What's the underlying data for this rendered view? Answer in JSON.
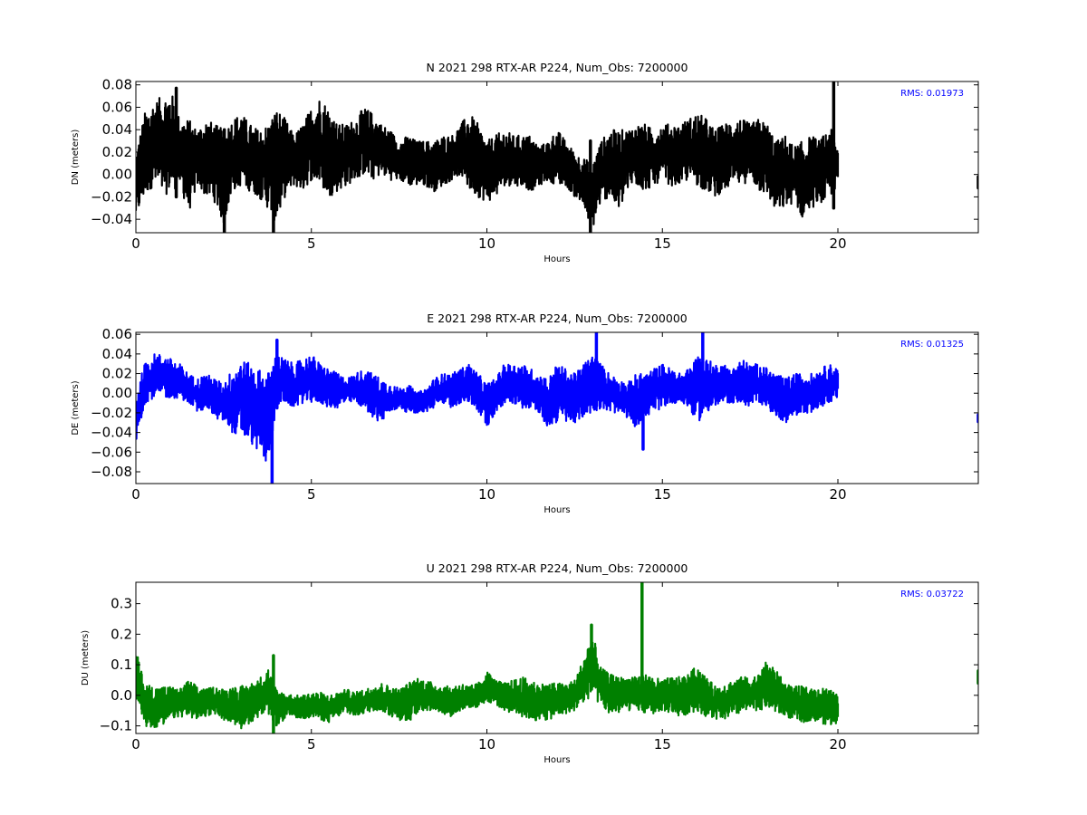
{
  "chart_data": [
    {
      "type": "line",
      "title": "N 2021 298 RTX-AR  P224, Num_Obs: 7200000",
      "xlabel": "Hours",
      "ylabel": "DN (meters)",
      "xlim": [
        0,
        24
      ],
      "ylim": [
        -0.052,
        0.083
      ],
      "xticks": [
        0,
        5,
        10,
        15,
        20
      ],
      "yticks": [
        -0.04,
        -0.02,
        0.0,
        0.02,
        0.04,
        0.06,
        0.08
      ],
      "ytick_labels": [
        "−0.04",
        "−0.02",
        "0.00",
        "0.02",
        "0.04",
        "0.06",
        "0.08"
      ],
      "grid": false,
      "color": "#000000",
      "rms_label": "RMS:  0.01973",
      "series": [
        {
          "x": [
            0,
            0.25,
            0.5,
            0.75,
            1,
            1.25,
            1.5,
            1.75,
            2,
            2.25,
            2.5,
            2.75,
            3,
            3.25,
            3.5,
            3.75,
            4,
            4.25,
            4.5,
            4.75,
            5,
            5.25,
            5.5,
            5.75,
            6,
            6.25,
            6.5,
            6.75,
            7,
            7.25,
            7.5,
            7.75,
            8,
            8.25,
            8.5,
            8.75,
            9,
            9.25,
            9.5,
            9.75,
            10,
            10.25,
            10.5,
            10.75,
            11,
            11.25,
            11.5,
            11.75,
            12,
            12.25,
            12.5,
            12.75,
            13,
            13.25,
            13.5,
            13.75,
            14,
            14.25,
            14.5,
            14.75,
            15,
            15.25,
            15.5,
            15.75,
            16,
            16.25,
            16.5,
            16.75,
            17,
            17.25,
            17.5,
            17.75,
            18,
            18.25,
            18.5,
            18.75,
            19,
            19.25,
            19.5,
            19.75,
            20
          ],
          "lower": [
            -0.04,
            -0.02,
            -0.01,
            -0.02,
            -0.015,
            -0.01,
            -0.035,
            -0.01,
            -0.02,
            -0.025,
            -0.045,
            -0.015,
            -0.01,
            -0.015,
            -0.02,
            -0.03,
            -0.045,
            -0.02,
            -0.01,
            -0.015,
            -0.005,
            -0.01,
            -0.02,
            -0.015,
            -0.01,
            -0.005,
            0.0,
            -0.005,
            0.0,
            -0.005,
            -0.005,
            -0.01,
            -0.01,
            -0.01,
            -0.015,
            -0.01,
            -0.005,
            0.0,
            -0.015,
            -0.02,
            -0.025,
            -0.02,
            -0.01,
            -0.01,
            -0.01,
            -0.015,
            -0.01,
            -0.005,
            -0.01,
            -0.01,
            -0.02,
            -0.03,
            -0.05,
            -0.025,
            -0.02,
            -0.035,
            -0.015,
            -0.01,
            -0.015,
            -0.01,
            -0.005,
            -0.01,
            -0.01,
            -0.005,
            -0.01,
            -0.015,
            -0.02,
            -0.015,
            -0.01,
            -0.01,
            -0.005,
            -0.015,
            -0.02,
            -0.035,
            -0.03,
            -0.025,
            -0.04,
            -0.03,
            -0.025,
            -0.025,
            -0.01
          ],
          "upper": [
            0.02,
            0.055,
            0.065,
            0.07,
            0.075,
            0.05,
            0.05,
            0.04,
            0.05,
            0.045,
            0.04,
            0.05,
            0.055,
            0.045,
            0.04,
            0.045,
            0.06,
            0.05,
            0.035,
            0.045,
            0.06,
            0.07,
            0.06,
            0.045,
            0.045,
            0.05,
            0.06,
            0.055,
            0.045,
            0.04,
            0.03,
            0.035,
            0.03,
            0.03,
            0.03,
            0.035,
            0.035,
            0.045,
            0.055,
            0.045,
            0.03,
            0.035,
            0.04,
            0.035,
            0.035,
            0.035,
            0.025,
            0.03,
            0.04,
            0.03,
            0.02,
            0.015,
            0.01,
            0.03,
            0.04,
            0.04,
            0.04,
            0.045,
            0.045,
            0.04,
            0.045,
            0.045,
            0.045,
            0.05,
            0.055,
            0.05,
            0.04,
            0.045,
            0.05,
            0.05,
            0.045,
            0.05,
            0.045,
            0.03,
            0.035,
            0.025,
            0.03,
            0.035,
            0.03,
            0.045,
            0.025
          ],
          "spikes": [
            {
              "x": 1.15,
              "min": -0.02,
              "max": 0.077
            },
            {
              "x": 2.52,
              "min": -0.052,
              "max": 0.04
            },
            {
              "x": 3.92,
              "min": -0.052,
              "max": 0.045
            },
            {
              "x": 12.95,
              "min": -0.052,
              "max": 0.03
            },
            {
              "x": 19.88,
              "min": -0.03,
              "max": 0.083
            },
            {
              "x": 24.0,
              "min": -0.012,
              "max": -0.002
            }
          ]
        }
      ]
    },
    {
      "type": "line",
      "title": "E 2021 298 RTX-AR  P224, Num_Obs: 7200000",
      "xlabel": "Hours",
      "ylabel": "DE (meters)",
      "xlim": [
        0,
        24
      ],
      "ylim": [
        -0.092,
        0.062
      ],
      "xticks": [
        0,
        5,
        10,
        15,
        20
      ],
      "yticks": [
        -0.08,
        -0.06,
        -0.04,
        -0.02,
        0.0,
        0.02,
        0.04,
        0.06
      ],
      "ytick_labels": [
        "−0.08",
        "−0.06",
        "−0.04",
        "−0.02",
        "0.00",
        "0.02",
        "0.04",
        "0.06"
      ],
      "grid": false,
      "color": "#0000ff",
      "rms_label": "RMS:  0.01325",
      "series": [
        {
          "x": [
            0,
            0.25,
            0.5,
            0.75,
            1,
            1.25,
            1.5,
            1.75,
            2,
            2.25,
            2.5,
            2.75,
            3,
            3.25,
            3.5,
            3.75,
            4,
            4.25,
            4.5,
            4.75,
            5,
            5.25,
            5.5,
            5.75,
            6,
            6.25,
            6.5,
            6.75,
            7,
            7.25,
            7.5,
            7.75,
            8,
            8.25,
            8.5,
            8.75,
            9,
            9.25,
            9.5,
            9.75,
            10,
            10.25,
            10.5,
            10.75,
            11,
            11.25,
            11.5,
            11.75,
            12,
            12.25,
            12.5,
            12.75,
            13,
            13.25,
            13.5,
            13.75,
            14,
            14.25,
            14.5,
            14.75,
            15,
            15.25,
            15.5,
            15.75,
            16,
            16.25,
            16.5,
            16.75,
            17,
            17.25,
            17.5,
            17.75,
            18,
            18.25,
            18.5,
            18.75,
            19,
            19.25,
            19.5,
            19.75,
            20
          ],
          "lower": [
            -0.055,
            -0.01,
            -0.005,
            -0.005,
            -0.005,
            -0.005,
            -0.01,
            -0.02,
            -0.015,
            -0.025,
            -0.03,
            -0.04,
            -0.045,
            -0.05,
            -0.06,
            -0.075,
            -0.015,
            -0.01,
            -0.015,
            -0.01,
            -0.01,
            -0.01,
            -0.015,
            -0.015,
            -0.01,
            -0.01,
            -0.015,
            -0.025,
            -0.03,
            -0.02,
            -0.015,
            -0.02,
            -0.02,
            -0.02,
            -0.015,
            -0.01,
            -0.015,
            -0.01,
            -0.01,
            -0.02,
            -0.035,
            -0.02,
            -0.01,
            -0.01,
            -0.015,
            -0.015,
            -0.025,
            -0.035,
            -0.03,
            -0.03,
            -0.03,
            -0.025,
            -0.02,
            -0.015,
            -0.02,
            -0.02,
            -0.025,
            -0.035,
            -0.025,
            -0.02,
            -0.015,
            -0.01,
            -0.01,
            -0.015,
            -0.03,
            -0.02,
            -0.015,
            -0.01,
            -0.01,
            -0.01,
            -0.015,
            -0.01,
            -0.015,
            -0.025,
            -0.03,
            -0.025,
            -0.02,
            -0.02,
            -0.015,
            -0.01,
            -0.005
          ],
          "upper": [
            0.0,
            0.03,
            0.04,
            0.04,
            0.035,
            0.03,
            0.02,
            0.015,
            0.02,
            0.015,
            0.01,
            0.025,
            0.035,
            0.03,
            0.025,
            0.02,
            0.04,
            0.035,
            0.03,
            0.035,
            0.04,
            0.03,
            0.025,
            0.02,
            0.015,
            0.02,
            0.025,
            0.02,
            0.015,
            0.01,
            0.005,
            0.01,
            0.0,
            0.005,
            0.015,
            0.02,
            0.02,
            0.025,
            0.03,
            0.02,
            0.01,
            0.015,
            0.03,
            0.03,
            0.03,
            0.025,
            0.02,
            0.015,
            0.03,
            0.025,
            0.02,
            0.03,
            0.04,
            0.03,
            0.02,
            0.015,
            0.01,
            0.02,
            0.02,
            0.025,
            0.03,
            0.025,
            0.02,
            0.025,
            0.04,
            0.035,
            0.03,
            0.03,
            0.025,
            0.035,
            0.03,
            0.03,
            0.025,
            0.02,
            0.015,
            0.02,
            0.02,
            0.02,
            0.025,
            0.03,
            0.025
          ],
          "spikes": [
            {
              "x": 3.88,
              "min": -0.092,
              "max": 0.0
            },
            {
              "x": 4.02,
              "min": -0.015,
              "max": 0.054
            },
            {
              "x": 13.12,
              "min": -0.005,
              "max": 0.062
            },
            {
              "x": 14.45,
              "min": -0.057,
              "max": 0.0
            },
            {
              "x": 16.15,
              "min": -0.01,
              "max": 0.062
            },
            {
              "x": 24.0,
              "min": -0.029,
              "max": -0.022
            }
          ]
        }
      ]
    },
    {
      "type": "line",
      "title": "U 2021 298 RTX-AR  P224, Num_Obs: 7200000",
      "xlabel": "Hours",
      "ylabel": "DU (meters)",
      "xlim": [
        0,
        24
      ],
      "ylim": [
        -0.125,
        0.37
      ],
      "xticks": [
        0,
        5,
        10,
        15,
        20
      ],
      "yticks": [
        -0.1,
        0.0,
        0.1,
        0.2,
        0.3
      ],
      "ytick_labels": [
        "−0.1",
        "0.0",
        "0.1",
        "0.2",
        "0.3"
      ],
      "grid": false,
      "color": "#008000",
      "rms_label": "RMS:  0.03722",
      "series": [
        {
          "x": [
            0,
            0.25,
            0.5,
            0.75,
            1,
            1.25,
            1.5,
            1.75,
            2,
            2.25,
            2.5,
            2.75,
            3,
            3.25,
            3.5,
            3.75,
            4,
            4.25,
            4.5,
            4.75,
            5,
            5.25,
            5.5,
            5.75,
            6,
            6.25,
            6.5,
            6.75,
            7,
            7.25,
            7.5,
            7.75,
            8,
            8.25,
            8.5,
            8.75,
            9,
            9.25,
            9.5,
            9.75,
            10,
            10.25,
            10.5,
            10.75,
            11,
            11.25,
            11.5,
            11.75,
            12,
            12.25,
            12.5,
            12.75,
            13,
            13.25,
            13.5,
            13.75,
            14,
            14.25,
            14.5,
            14.75,
            15,
            15.25,
            15.5,
            15.75,
            16,
            16.25,
            16.5,
            16.75,
            17,
            17.25,
            17.5,
            17.75,
            18,
            18.25,
            18.5,
            18.75,
            19,
            19.25,
            19.5,
            19.75,
            20
          ],
          "lower": [
            -0.02,
            -0.1,
            -0.11,
            -0.1,
            -0.08,
            -0.07,
            -0.07,
            -0.08,
            -0.07,
            -0.06,
            -0.08,
            -0.09,
            -0.11,
            -0.09,
            -0.07,
            -0.06,
            -0.1,
            -0.08,
            -0.07,
            -0.08,
            -0.07,
            -0.08,
            -0.09,
            -0.07,
            -0.06,
            -0.07,
            -0.06,
            -0.05,
            -0.05,
            -0.07,
            -0.08,
            -0.09,
            -0.06,
            -0.05,
            -0.05,
            -0.06,
            -0.07,
            -0.05,
            -0.04,
            -0.04,
            -0.02,
            -0.03,
            -0.05,
            -0.06,
            -0.07,
            -0.08,
            -0.09,
            -0.08,
            -0.07,
            -0.06,
            -0.05,
            -0.03,
            0.0,
            -0.04,
            -0.06,
            -0.06,
            -0.05,
            -0.05,
            -0.06,
            -0.06,
            -0.05,
            -0.06,
            -0.07,
            -0.06,
            -0.05,
            -0.07,
            -0.08,
            -0.08,
            -0.07,
            -0.06,
            -0.05,
            -0.05,
            -0.04,
            -0.06,
            -0.07,
            -0.08,
            -0.09,
            -0.08,
            -0.09,
            -0.1,
            -0.09
          ],
          "upper": [
            0.15,
            0.04,
            0.03,
            0.03,
            0.03,
            0.02,
            0.05,
            0.03,
            0.02,
            0.03,
            0.02,
            0.03,
            0.03,
            0.04,
            0.05,
            0.1,
            0.02,
            0.01,
            0.0,
            0.0,
            0.01,
            0.01,
            0.0,
            0.01,
            0.02,
            0.01,
            0.02,
            0.03,
            0.04,
            0.03,
            0.02,
            0.04,
            0.06,
            0.05,
            0.04,
            0.03,
            0.03,
            0.04,
            0.03,
            0.04,
            0.08,
            0.05,
            0.04,
            0.05,
            0.06,
            0.05,
            0.04,
            0.04,
            0.04,
            0.04,
            0.05,
            0.12,
            0.21,
            0.09,
            0.07,
            0.06,
            0.06,
            0.07,
            0.07,
            0.06,
            0.05,
            0.06,
            0.06,
            0.07,
            0.1,
            0.06,
            0.03,
            0.04,
            0.05,
            0.06,
            0.06,
            0.07,
            0.12,
            0.08,
            0.04,
            0.03,
            0.03,
            0.02,
            0.03,
            0.02,
            0.0
          ],
          "spikes": [
            {
              "x": 14.42,
              "min": -0.02,
              "max": 0.37
            },
            {
              "x": 12.98,
              "min": 0.02,
              "max": 0.23
            },
            {
              "x": 3.92,
              "min": -0.125,
              "max": 0.13
            },
            {
              "x": 24.0,
              "min": 0.04,
              "max": 0.08
            }
          ]
        }
      ]
    }
  ]
}
